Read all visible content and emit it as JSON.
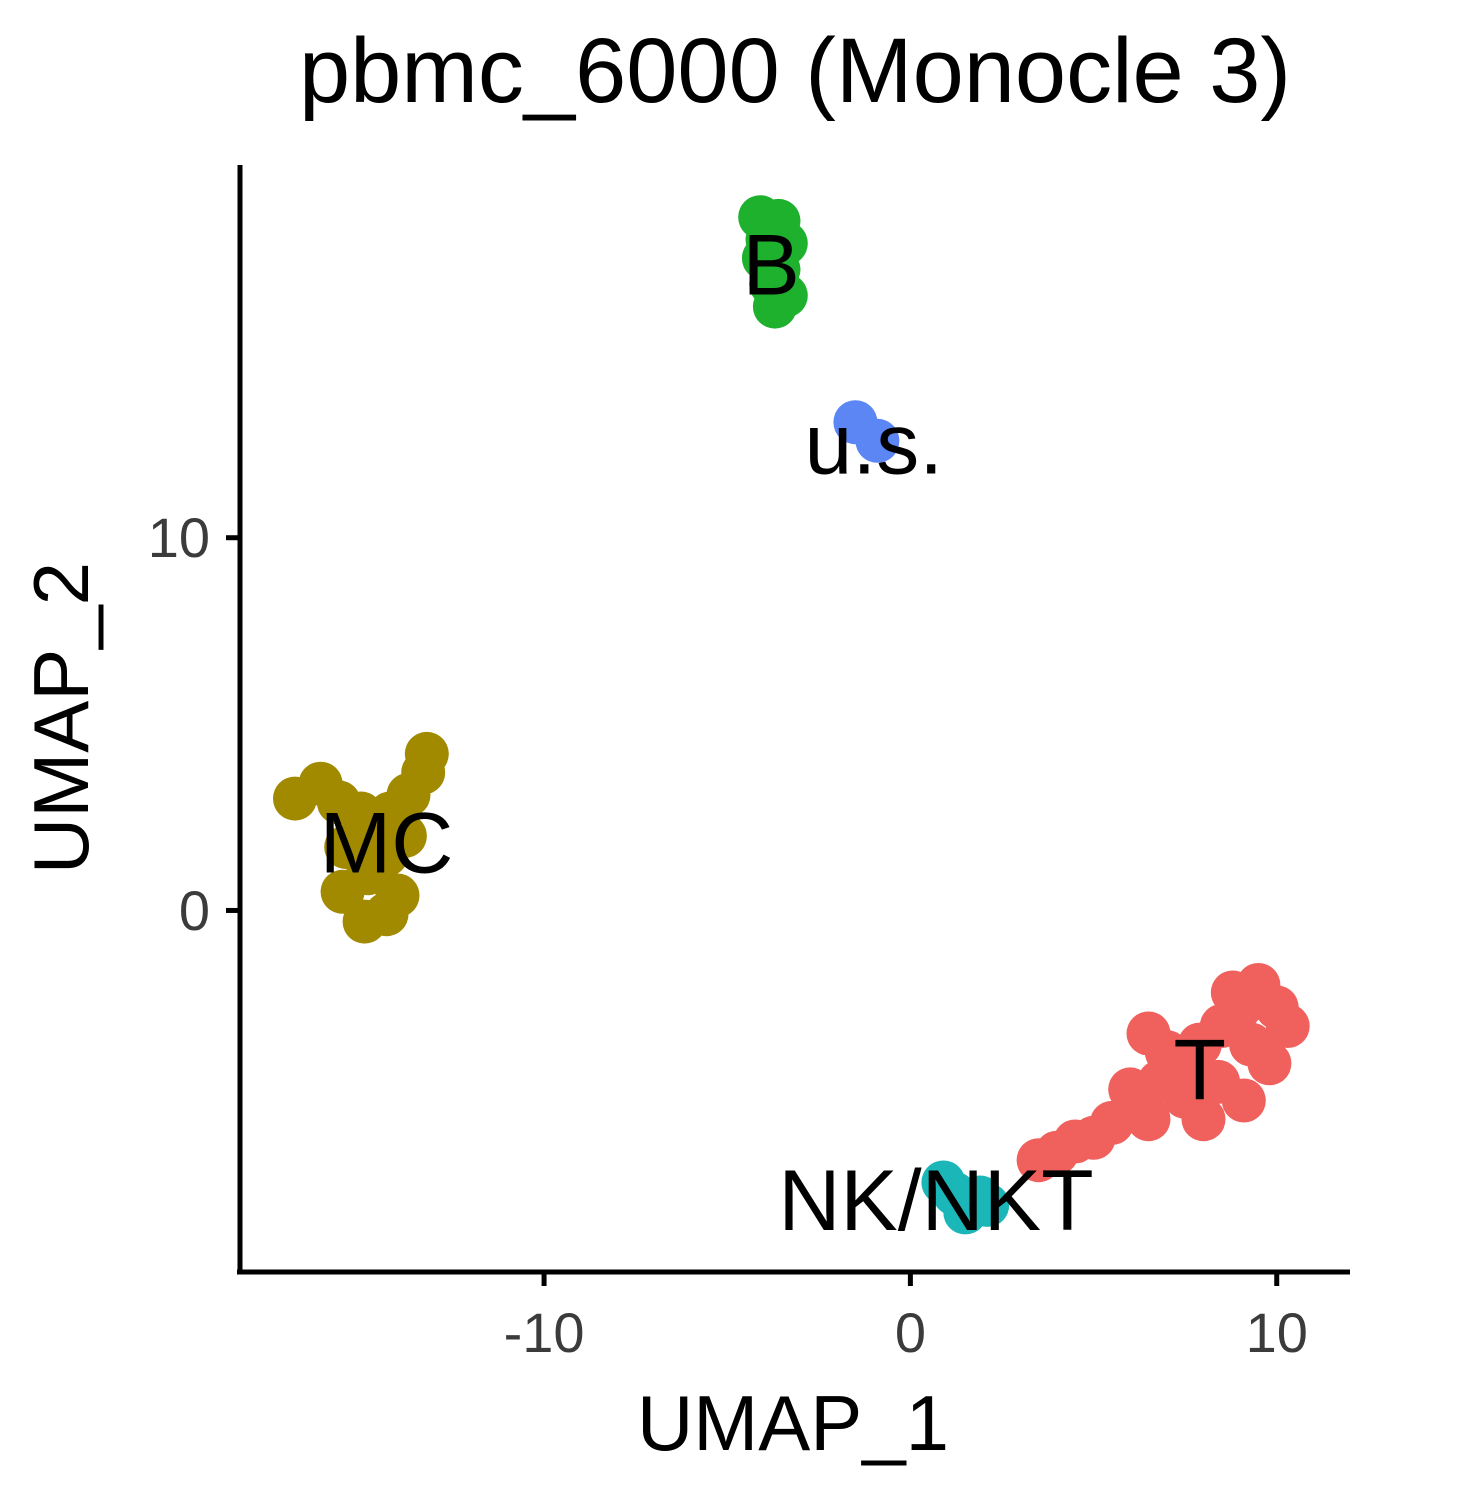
{
  "chart_data": {
    "type": "scatter",
    "title": "pbmc_6000 (Monocle 3)",
    "xlabel": "UMAP_1",
    "ylabel": "UMAP_2",
    "xlim": [
      -18.3,
      12.0
    ],
    "ylim": [
      -9.7,
      20.0
    ],
    "xticks": [
      -10,
      0,
      10
    ],
    "xtick_labels": [
      "-10",
      "0",
      "10"
    ],
    "yticks": [
      0,
      10
    ],
    "ytick_labels": [
      "0",
      "10"
    ],
    "grid": false,
    "legend": "none",
    "series": [
      {
        "name": "T",
        "color": "#F0605D",
        "label_position": [
          7.9,
          -4.3
        ],
        "points": [
          [
            3.5,
            -6.7
          ],
          [
            4.5,
            -6.2
          ],
          [
            5.5,
            -5.7
          ],
          [
            6.2,
            -5.1
          ],
          [
            6.8,
            -4.6
          ],
          [
            7.5,
            -4.1
          ],
          [
            7.9,
            -3.6
          ],
          [
            8.5,
            -3.1
          ],
          [
            9.0,
            -2.6
          ],
          [
            9.5,
            -2.0
          ],
          [
            10.0,
            -2.6
          ],
          [
            10.3,
            -3.1
          ],
          [
            9.8,
            -4.1
          ],
          [
            9.1,
            -5.1
          ],
          [
            8.0,
            -5.6
          ],
          [
            6.5,
            -5.6
          ],
          [
            5.0,
            -6.1
          ],
          [
            4.0,
            -6.5
          ],
          [
            6.0,
            -4.8
          ],
          [
            7.0,
            -3.8
          ],
          [
            8.4,
            -4.6
          ],
          [
            9.3,
            -3.6
          ],
          [
            8.8,
            -2.2
          ],
          [
            6.5,
            -3.3
          ],
          [
            7.5,
            -5.0
          ]
        ]
      },
      {
        "name": "MC",
        "color": "#A18A00",
        "label_position": [
          -14.3,
          1.8
        ],
        "points": [
          [
            -16.8,
            3.0
          ],
          [
            -16.1,
            3.4
          ],
          [
            -15.6,
            2.9
          ],
          [
            -15.0,
            2.6
          ],
          [
            -14.6,
            2.1
          ],
          [
            -14.2,
            2.6
          ],
          [
            -13.7,
            3.1
          ],
          [
            -13.3,
            3.7
          ],
          [
            -13.2,
            4.2
          ],
          [
            -13.8,
            2.0
          ],
          [
            -14.3,
            1.5
          ],
          [
            -14.8,
            1.0
          ],
          [
            -15.4,
            1.7
          ],
          [
            -15.5,
            0.5
          ],
          [
            -14.9,
            -0.3
          ],
          [
            -14.3,
            -0.1
          ],
          [
            -14.0,
            0.4
          ]
        ]
      },
      {
        "name": "B",
        "color": "#1EB12E",
        "label_position": [
          -3.8,
          17.3
        ],
        "points": [
          [
            -4.1,
            18.6
          ],
          [
            -3.6,
            18.5
          ],
          [
            -3.9,
            18.0
          ],
          [
            -3.4,
            17.9
          ],
          [
            -4.0,
            17.5
          ],
          [
            -3.6,
            17.2
          ],
          [
            -3.8,
            16.8
          ],
          [
            -3.4,
            16.5
          ],
          [
            -3.7,
            16.2
          ]
        ]
      },
      {
        "name": "u.s.",
        "color": "#5B86F4",
        "label_position": [
          -1.0,
          12.5
        ],
        "points": [
          [
            -1.5,
            13.1
          ],
          [
            -0.9,
            12.6
          ]
        ]
      },
      {
        "name": "NK/NKT",
        "color": "#1BB6B8",
        "label_position": [
          0.7,
          -7.8
        ],
        "points": [
          [
            0.9,
            -7.3
          ],
          [
            1.2,
            -7.6
          ],
          [
            1.6,
            -7.9
          ],
          [
            1.9,
            -7.7
          ],
          [
            1.5,
            -8.1
          ],
          [
            2.1,
            -7.9
          ]
        ]
      }
    ]
  }
}
